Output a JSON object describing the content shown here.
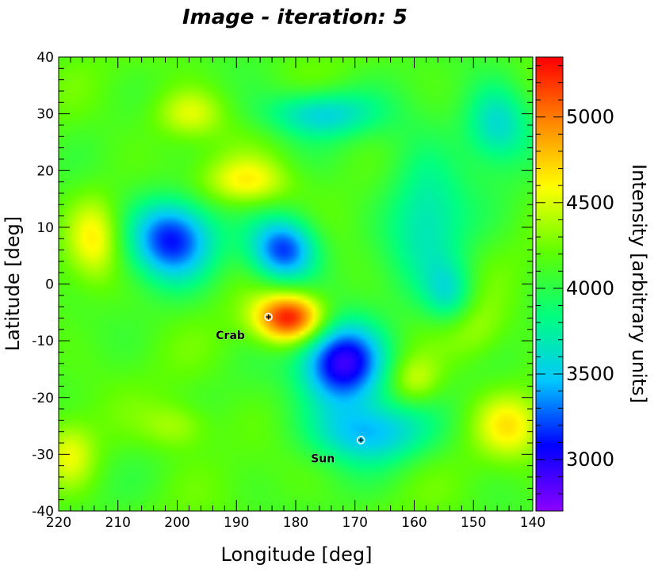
{
  "chart_data": {
    "type": "heatmap",
    "title": "Image - iteration: 5",
    "xlabel": "Longitude [deg]",
    "ylabel": "Latitude [deg]",
    "colorbar_label": "Intensity [arbitrary units]",
    "xlim": [
      220,
      140
    ],
    "ylim": [
      -40,
      40
    ],
    "x_ticks": [
      220,
      210,
      200,
      190,
      180,
      170,
      160,
      150,
      140
    ],
    "y_ticks": [
      40,
      30,
      20,
      10,
      0,
      -10,
      -20,
      -30,
      -40
    ],
    "colorbar_range": [
      2700,
      5350
    ],
    "colorbar_ticks": [
      5000,
      4500,
      4000,
      3500,
      3000
    ],
    "colormap": [
      "#8a00ff",
      "#0000ff",
      "#00c8ff",
      "#00ff80",
      "#60ff00",
      "#ffff00",
      "#ff8800",
      "#ff0000"
    ],
    "background_level": 4150,
    "features": [
      {
        "lon": 201,
        "lat": 8,
        "sigma_lon": 5,
        "sigma_lat": 5,
        "intensity": 3100
      },
      {
        "lon": 182,
        "lat": 6,
        "sigma_lon": 4,
        "sigma_lat": 4,
        "intensity": 3150
      },
      {
        "lon": 172,
        "lat": -14,
        "sigma_lon": 5,
        "sigma_lat": 5,
        "intensity": 2900
      },
      {
        "lon": 168,
        "lat": -26,
        "sigma_lon": 7,
        "sigma_lat": 4,
        "intensity": 3450
      },
      {
        "lon": 158,
        "lat": 12,
        "sigma_lon": 5,
        "sigma_lat": 9,
        "intensity": 3650
      },
      {
        "lon": 176,
        "lat": 30,
        "sigma_lon": 7,
        "sigma_lat": 3,
        "intensity": 3550
      },
      {
        "lon": 146,
        "lat": 28,
        "sigma_lon": 4,
        "sigma_lat": 5,
        "intensity": 3550
      },
      {
        "lon": 154,
        "lat": -2,
        "sigma_lon": 3,
        "sigma_lat": 4,
        "intensity": 3700
      },
      {
        "lon": 181,
        "lat": -6,
        "sigma_lon": 4,
        "sigma_lat": 3,
        "intensity": 5350
      },
      {
        "lon": 188,
        "lat": 18,
        "sigma_lon": 5,
        "sigma_lat": 3,
        "intensity": 4650
      },
      {
        "lon": 214,
        "lat": 8,
        "sigma_lon": 3,
        "sigma_lat": 5,
        "intensity": 4600
      },
      {
        "lon": 198,
        "lat": 30,
        "sigma_lon": 4,
        "sigma_lat": 3,
        "intensity": 4550
      },
      {
        "lon": 144,
        "lat": -25,
        "sigma_lon": 4,
        "sigma_lat": 4,
        "intensity": 4600
      },
      {
        "lon": 218,
        "lat": -30,
        "sigma_lon": 3,
        "sigma_lat": 4,
        "intensity": 4500
      },
      {
        "lon": 160,
        "lat": -17,
        "sigma_lon": 3,
        "sigma_lat": 3,
        "intensity": 4500
      },
      {
        "lon": 150,
        "lat": -8,
        "sigma_lon": 4,
        "sigma_lat": 4,
        "intensity": 4400
      },
      {
        "lon": 200,
        "lat": -25,
        "sigma_lon": 4,
        "sigma_lat": 3,
        "intensity": 4450
      }
    ],
    "markers": [
      {
        "name": "Crab",
        "lon": 184.6,
        "lat": -5.8
      },
      {
        "name": "Sun",
        "lon": 169,
        "lat": -27.5
      }
    ]
  }
}
